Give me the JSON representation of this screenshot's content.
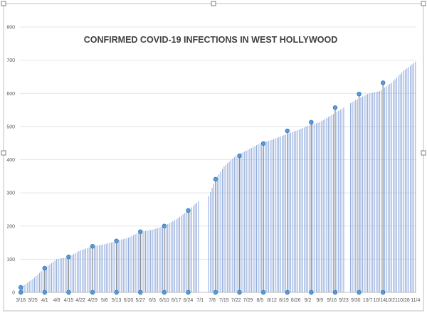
{
  "chart_data": {
    "type": "bar",
    "title": "CONFIRMED COVID-19 INFECTIONS IN WEST HOLLYWOOD",
    "xlabel": "",
    "ylabel": "",
    "ylim": [
      0,
      800
    ],
    "yticks": [
      0,
      100,
      200,
      300,
      400,
      500,
      600,
      700,
      800
    ],
    "x_tick_labels": [
      "3/18",
      "3/25",
      "4/1",
      "4/8",
      "4/15",
      "4/22",
      "4/29",
      "5/6",
      "5/13",
      "5/20",
      "5/27",
      "6/3",
      "6/10",
      "6/17",
      "6/24",
      "7/1",
      "7/8",
      "7/15",
      "7/22",
      "7/29",
      "8/5",
      "8/12",
      "8/19",
      "8/26",
      "9/2",
      "9/9",
      "9/16",
      "9/23",
      "9/30",
      "10/7",
      "10/14",
      "10/21",
      "10/28",
      "11/4"
    ],
    "start_date": "3/18",
    "end_date": "11/4",
    "daily_color": "#8faadc",
    "marker_color": "#5b9bd5",
    "grid": true,
    "gap_dates": [
      "7/1",
      "7/2",
      "7/3",
      "7/4",
      "7/5",
      "9/24",
      "9/25",
      "9/26"
    ],
    "anchors": [
      {
        "date": "3/18",
        "value": 15
      },
      {
        "date": "3/25",
        "value": 40
      },
      {
        "date": "4/1",
        "value": 73
      },
      {
        "date": "4/8",
        "value": 100
      },
      {
        "date": "4/15",
        "value": 107
      },
      {
        "date": "4/22",
        "value": 127
      },
      {
        "date": "4/29",
        "value": 139
      },
      {
        "date": "5/6",
        "value": 145
      },
      {
        "date": "5/13",
        "value": 155
      },
      {
        "date": "5/20",
        "value": 165
      },
      {
        "date": "5/27",
        "value": 183
      },
      {
        "date": "6/3",
        "value": 189
      },
      {
        "date": "6/10",
        "value": 200
      },
      {
        "date": "6/17",
        "value": 220
      },
      {
        "date": "6/24",
        "value": 247
      },
      {
        "date": "6/30",
        "value": 275
      },
      {
        "date": "7/6",
        "value": 290
      },
      {
        "date": "7/10",
        "value": 341
      },
      {
        "date": "7/15",
        "value": 380
      },
      {
        "date": "7/22",
        "value": 412
      },
      {
        "date": "7/29",
        "value": 430
      },
      {
        "date": "8/5",
        "value": 449
      },
      {
        "date": "8/12",
        "value": 460
      },
      {
        "date": "8/19",
        "value": 474
      },
      {
        "date": "8/26",
        "value": 487
      },
      {
        "date": "9/2",
        "value": 502
      },
      {
        "date": "9/9",
        "value": 513
      },
      {
        "date": "9/16",
        "value": 535
      },
      {
        "date": "9/23",
        "value": 557
      },
      {
        "date": "9/30",
        "value": 580
      },
      {
        "date": "10/7",
        "value": 598
      },
      {
        "date": "10/14",
        "value": 607
      },
      {
        "date": "10/21",
        "value": 632
      },
      {
        "date": "10/28",
        "value": 668
      },
      {
        "date": "11/4",
        "value": 695
      }
    ],
    "markers": [
      {
        "date": "3/18",
        "value": 15
      },
      {
        "date": "4/1",
        "value": 73
      },
      {
        "date": "4/15",
        "value": 107
      },
      {
        "date": "4/29",
        "value": 139
      },
      {
        "date": "5/13",
        "value": 155
      },
      {
        "date": "5/27",
        "value": 183
      },
      {
        "date": "6/10",
        "value": 200
      },
      {
        "date": "6/24",
        "value": 247
      },
      {
        "date": "7/10",
        "value": 341
      },
      {
        "date": "7/24",
        "value": 412
      },
      {
        "date": "8/7",
        "value": 449
      },
      {
        "date": "8/21",
        "value": 487
      },
      {
        "date": "9/4",
        "value": 513
      },
      {
        "date": "9/18",
        "value": 557
      },
      {
        "date": "10/2",
        "value": 598
      },
      {
        "date": "10/16",
        "value": 632
      }
    ]
  }
}
